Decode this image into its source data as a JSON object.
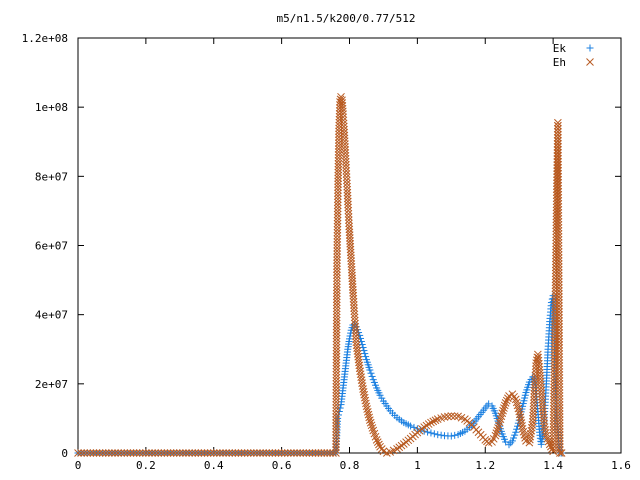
{
  "chart_data": {
    "type": "scatter",
    "title": "m5/n1.5/k200/0.77/512",
    "xlabel": "",
    "ylabel": "",
    "xlim": [
      0,
      1.6
    ],
    "ylim": [
      0,
      120000000
    ],
    "x_ticks": [
      "0",
      "0.2",
      "0.4",
      "0.6",
      "0.8",
      "1",
      "1.2",
      "1.4",
      "1.6"
    ],
    "y_ticks": [
      "0",
      "2e+07",
      "4e+07",
      "6e+07",
      "8e+07",
      "1e+08",
      "1.2e+08"
    ],
    "legend_position": "top-right",
    "grid": false,
    "series": [
      {
        "name": "Ek",
        "marker": "plus",
        "color": "#1a7fe0",
        "points": [
          [
            0.0,
            0
          ],
          [
            0.1,
            0
          ],
          [
            0.2,
            0
          ],
          [
            0.3,
            0
          ],
          [
            0.4,
            0
          ],
          [
            0.5,
            0
          ],
          [
            0.6,
            0
          ],
          [
            0.7,
            0
          ],
          [
            0.76,
            0
          ],
          [
            0.765,
            10000000
          ],
          [
            0.77,
            12000000
          ],
          [
            0.775,
            14000000
          ],
          [
            0.78,
            18000000
          ],
          [
            0.785,
            22000000
          ],
          [
            0.79,
            26000000
          ],
          [
            0.795,
            30000000
          ],
          [
            0.8,
            33000000
          ],
          [
            0.805,
            35500000
          ],
          [
            0.81,
            37000000
          ],
          [
            0.815,
            37200000
          ],
          [
            0.82,
            36500000
          ],
          [
            0.83,
            34000000
          ],
          [
            0.84,
            30500000
          ],
          [
            0.85,
            27000000
          ],
          [
            0.86,
            24000000
          ],
          [
            0.87,
            21200000
          ],
          [
            0.88,
            18800000
          ],
          [
            0.89,
            16700000
          ],
          [
            0.9,
            15000000
          ],
          [
            0.92,
            12200000
          ],
          [
            0.94,
            10200000
          ],
          [
            0.96,
            8800000
          ],
          [
            0.98,
            7800000
          ],
          [
            1.0,
            7000000
          ],
          [
            1.02,
            6300000
          ],
          [
            1.04,
            5800000
          ],
          [
            1.06,
            5300000
          ],
          [
            1.08,
            5000000
          ],
          [
            1.1,
            4900000
          ],
          [
            1.12,
            5300000
          ],
          [
            1.14,
            6300000
          ],
          [
            1.16,
            8000000
          ],
          [
            1.18,
            10500000
          ],
          [
            1.2,
            13000000
          ],
          [
            1.21,
            14200000
          ],
          [
            1.22,
            13600000
          ],
          [
            1.23,
            11500000
          ],
          [
            1.24,
            8500000
          ],
          [
            1.25,
            5500000
          ],
          [
            1.26,
            3200000
          ],
          [
            1.27,
            2400000
          ],
          [
            1.28,
            3500000
          ],
          [
            1.29,
            6000000
          ],
          [
            1.3,
            9500000
          ],
          [
            1.31,
            13500000
          ],
          [
            1.32,
            17500000
          ],
          [
            1.33,
            20500000
          ],
          [
            1.34,
            22000000
          ],
          [
            1.345,
            21500000
          ],
          [
            1.35,
            18000000
          ],
          [
            1.355,
            12000000
          ],
          [
            1.36,
            6000000
          ],
          [
            1.365,
            2500000
          ],
          [
            1.37,
            5500000
          ],
          [
            1.375,
            12000000
          ],
          [
            1.38,
            20000000
          ],
          [
            1.385,
            30000000
          ],
          [
            1.39,
            38000000
          ],
          [
            1.395,
            43500000
          ],
          [
            1.4,
            45500000
          ],
          [
            1.405,
            25500000
          ],
          [
            1.41,
            11000000
          ],
          [
            1.42,
            0
          ],
          [
            1.425,
            0
          ]
        ]
      },
      {
        "name": "Eh",
        "marker": "cross",
        "color": "#b85a20",
        "points": [
          [
            0.0,
            0
          ],
          [
            0.1,
            0
          ],
          [
            0.2,
            0
          ],
          [
            0.3,
            0
          ],
          [
            0.4,
            0
          ],
          [
            0.5,
            0
          ],
          [
            0.6,
            0
          ],
          [
            0.7,
            0
          ],
          [
            0.76,
            0
          ],
          [
            0.763,
            54000000
          ],
          [
            0.766,
            76000000
          ],
          [
            0.769,
            93000000
          ],
          [
            0.772,
            101500000
          ],
          [
            0.775,
            103000000
          ],
          [
            0.778,
            102000000
          ],
          [
            0.781,
            98000000
          ],
          [
            0.784,
            93500000
          ],
          [
            0.787,
            88500000
          ],
          [
            0.79,
            82500000
          ],
          [
            0.793,
            77000000
          ],
          [
            0.796,
            71000000
          ],
          [
            0.799,
            65500000
          ],
          [
            0.802,
            60500000
          ],
          [
            0.805,
            55500000
          ],
          [
            0.808,
            50500000
          ],
          [
            0.811,
            45500000
          ],
          [
            0.814,
            41000000
          ],
          [
            0.817,
            36500000
          ],
          [
            0.82,
            32000000
          ],
          [
            0.83,
            24500000
          ],
          [
            0.84,
            18500000
          ],
          [
            0.85,
            13500000
          ],
          [
            0.86,
            9500000
          ],
          [
            0.87,
            6500000
          ],
          [
            0.88,
            3800000
          ],
          [
            0.89,
            1800000
          ],
          [
            0.9,
            500000
          ],
          [
            0.91,
            0
          ],
          [
            0.92,
            300000
          ],
          [
            0.94,
            1200000
          ],
          [
            0.96,
            2600000
          ],
          [
            0.98,
            4200000
          ],
          [
            1.0,
            5900000
          ],
          [
            1.02,
            7500000
          ],
          [
            1.04,
            8800000
          ],
          [
            1.06,
            9800000
          ],
          [
            1.08,
            10400000
          ],
          [
            1.1,
            10700000
          ],
          [
            1.12,
            10600000
          ],
          [
            1.14,
            9800000
          ],
          [
            1.16,
            8200000
          ],
          [
            1.18,
            6000000
          ],
          [
            1.2,
            3800000
          ],
          [
            1.21,
            2900000
          ],
          [
            1.22,
            3200000
          ],
          [
            1.23,
            5000000
          ],
          [
            1.24,
            8000000
          ],
          [
            1.25,
            11500000
          ],
          [
            1.26,
            14500000
          ],
          [
            1.27,
            16500000
          ],
          [
            1.28,
            17000000
          ],
          [
            1.29,
            15500000
          ],
          [
            1.3,
            12000000
          ],
          [
            1.31,
            7000000
          ],
          [
            1.32,
            3500000
          ],
          [
            1.33,
            3000000
          ],
          [
            1.34,
            9000000
          ],
          [
            1.345,
            18000000
          ],
          [
            1.35,
            26000000
          ],
          [
            1.355,
            28500000
          ],
          [
            1.36,
            24000000
          ],
          [
            1.365,
            18000000
          ],
          [
            1.37,
            12000000
          ],
          [
            1.375,
            7500000
          ],
          [
            1.38,
            5000000
          ],
          [
            1.39,
            2500000
          ],
          [
            1.4,
            500000
          ],
          [
            1.405,
            33000000
          ],
          [
            1.408,
            54500000
          ],
          [
            1.411,
            78000000
          ],
          [
            1.414,
            95500000
          ],
          [
            1.42,
            0
          ],
          [
            1.425,
            0
          ]
        ]
      }
    ]
  }
}
